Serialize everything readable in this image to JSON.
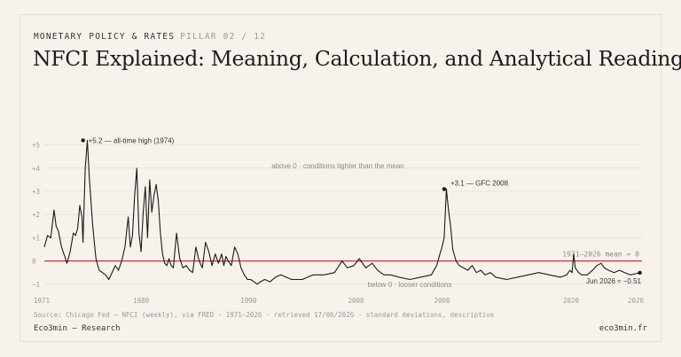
{
  "header": {
    "kicker": "MONETARY POLICY & RATES",
    "pillar": "PILLAR 02 / 12",
    "title": "NFCI Explained: Meaning, Calculation, and Analytical Reading"
  },
  "footer": {
    "source": "Source: Chicago Fed — NFCI (weekly), via FRED · 1971–2026 · retrieved 17/06/2026 · standard deviations, descriptive",
    "brand": "Eco3min — Research",
    "site": "eco3min.fr"
  },
  "colors": {
    "line": "#1a1a1a",
    "zero_line": "#c0392b",
    "grid": "#e2ddd4",
    "tick": "#9a9a9a",
    "annotation": "#333333",
    "muted": "#8a8a8a"
  },
  "chart_data": {
    "type": "line",
    "title": "",
    "xlabel": "",
    "ylabel": "",
    "x_ticks": [
      "1971",
      "1980",
      "1990",
      "2000",
      "2008",
      "2020",
      "2026"
    ],
    "y_ticks": [
      "+5",
      "+4",
      "+3",
      "+2",
      "+1",
      "0",
      "−1"
    ],
    "y_tick_values": [
      5,
      4,
      3,
      2,
      1,
      0,
      -1
    ],
    "xlim": [
      1971,
      2026.6
    ],
    "ylim": [
      -1.2,
      5.6
    ],
    "grid": true,
    "reference_line": {
      "y": 0,
      "label": "1971–2026 mean = 0"
    },
    "annotations": [
      {
        "text": "+5.2 — all-time high (1974)",
        "x": 1974.6,
        "y": 5.2
      },
      {
        "text": "+3.1 — GFC 2008",
        "x": 2008.2,
        "y": 3.1
      },
      {
        "text": "Jun 2026 ≈ −0.51",
        "x": 2026.4,
        "y": -0.51
      }
    ],
    "region_labels": {
      "above": "above 0 · conditions tighter than the mean",
      "below": "below 0 · looser conditions"
    },
    "series": [
      {
        "x": [
          1971.0,
          1971.3,
          1971.6,
          1971.9,
          1972.1,
          1972.3,
          1972.6,
          1972.9,
          1973.1,
          1973.4,
          1973.7,
          1973.9,
          1974.1,
          1974.3,
          1974.5,
          1974.6,
          1974.8,
          1975.0,
          1975.2,
          1975.5,
          1975.8,
          1976.1,
          1976.4,
          1976.7,
          1977.0,
          1977.3,
          1977.6,
          1977.9,
          1978.2,
          1978.5,
          1978.8,
          1979.0,
          1979.2,
          1979.4,
          1979.6,
          1979.8,
          1980.0,
          1980.2,
          1980.4,
          1980.6,
          1980.8,
          1981.0,
          1981.2,
          1981.4,
          1981.6,
          1981.8,
          1982.0,
          1982.2,
          1982.4,
          1982.6,
          1982.8,
          1983.0,
          1983.3,
          1983.6,
          1983.9,
          1984.2,
          1984.5,
          1984.8,
          1985.1,
          1985.4,
          1985.7,
          1986.0,
          1986.3,
          1986.6,
          1986.9,
          1987.2,
          1987.5,
          1987.7,
          1987.9,
          1988.1,
          1988.4,
          1988.7,
          1989.0,
          1989.3,
          1989.6,
          1989.9,
          1990.2,
          1990.5,
          1990.8,
          1991.1,
          1991.5,
          1992.0,
          1992.5,
          1993.0,
          1993.5,
          1994.0,
          1995.0,
          1996.0,
          1997.0,
          1998.0,
          1998.7,
          1999.2,
          1999.8,
          2000.3,
          2000.9,
          2001.5,
          2002.0,
          2002.6,
          2003.2,
          2004.0,
          2005.0,
          2006.0,
          2007.0,
          2007.5,
          2007.8,
          2008.0,
          2008.2,
          2008.4,
          2008.6,
          2008.8,
          2009.0,
          2009.3,
          2009.6,
          2010.0,
          2010.4,
          2010.8,
          2011.2,
          2011.6,
          2012.0,
          2012.5,
          2013.0,
          2014.0,
          2015.0,
          2016.0,
          2017.0,
          2018.0,
          2019.0,
          2019.6,
          2019.9,
          2020.1,
          2020.25,
          2020.4,
          2020.7,
          2021.0,
          2021.5,
          2022.0,
          2022.4,
          2022.8,
          2023.1,
          2023.5,
          2024.0,
          2024.5,
          2025.0,
          2025.5,
          2026.0,
          2026.4
        ],
        "values": [
          0.6,
          1.1,
          1.0,
          2.2,
          1.5,
          1.3,
          0.6,
          0.2,
          -0.1,
          0.4,
          1.2,
          1.1,
          1.4,
          2.4,
          1.9,
          0.8,
          4.0,
          5.2,
          3.5,
          1.5,
          0.1,
          -0.4,
          -0.5,
          -0.6,
          -0.8,
          -0.5,
          -0.2,
          -0.4,
          0.0,
          0.6,
          1.9,
          0.6,
          1.1,
          2.8,
          4.0,
          1.2,
          0.4,
          2.1,
          3.2,
          1.0,
          3.5,
          2.1,
          2.8,
          3.3,
          2.6,
          1.2,
          0.3,
          -0.1,
          -0.2,
          0.1,
          -0.2,
          -0.3,
          1.2,
          0.1,
          -0.3,
          -0.2,
          -0.4,
          -0.5,
          0.6,
          0.0,
          -0.3,
          0.8,
          0.4,
          -0.2,
          0.3,
          -0.1,
          0.3,
          -0.2,
          0.2,
          0.0,
          -0.2,
          0.6,
          0.3,
          -0.3,
          -0.6,
          -0.8,
          -0.8,
          -0.9,
          -1.0,
          -0.9,
          -0.8,
          -0.9,
          -0.7,
          -0.6,
          -0.7,
          -0.8,
          -0.8,
          -0.6,
          -0.6,
          -0.5,
          0.0,
          -0.3,
          -0.2,
          0.1,
          -0.3,
          -0.1,
          -0.4,
          -0.6,
          -0.6,
          -0.7,
          -0.8,
          -0.7,
          -0.6,
          -0.2,
          0.3,
          0.6,
          1.0,
          3.1,
          2.2,
          1.5,
          0.5,
          0.0,
          -0.2,
          -0.3,
          -0.4,
          -0.2,
          -0.5,
          -0.4,
          -0.6,
          -0.5,
          -0.7,
          -0.8,
          -0.7,
          -0.6,
          -0.5,
          -0.6,
          -0.7,
          -0.6,
          -0.4,
          -0.5,
          0.3,
          -0.3,
          -0.5,
          -0.6,
          -0.6,
          -0.4,
          -0.2,
          -0.1,
          -0.3,
          -0.4,
          -0.5,
          -0.4,
          -0.5,
          -0.6,
          -0.55,
          -0.51
        ]
      }
    ]
  }
}
